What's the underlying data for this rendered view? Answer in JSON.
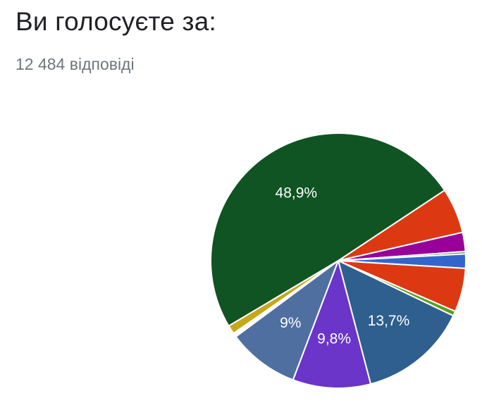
{
  "header": {
    "title": "Ви голосуєте за:",
    "response_count": "12 484 відповіді"
  },
  "chart_data": {
    "type": "pie",
    "title": "Ви голосуєте за:",
    "start_angle_deg": -33.5,
    "direction": "clockwise",
    "slices": [
      {
        "value": 5.7,
        "color": "#dc3912",
        "label": ""
      },
      {
        "value": 2.4,
        "color": "#990099",
        "label": ""
      },
      {
        "value": 0.3,
        "color": "#5a8f29",
        "label": ""
      },
      {
        "value": 1.8,
        "color": "#3366cc",
        "label": ""
      },
      {
        "value": 5.5,
        "color": "#dc3912",
        "label": ""
      },
      {
        "value": 0.6,
        "color": "#5a9e1f",
        "label": ""
      },
      {
        "value": 13.7,
        "color": "#2e5f8e",
        "label": "13,7%"
      },
      {
        "value": 9.8,
        "color": "#6a35c8",
        "label": "9,8%"
      },
      {
        "value": 9.0,
        "color": "#4e6fa0",
        "label": "9%"
      },
      {
        "value": 0.5,
        "color": "#ffffff",
        "label": ""
      },
      {
        "value": 1.1,
        "color": "#c4a81a",
        "label": ""
      },
      {
        "value": 48.9,
        "color": "#0f5422",
        "label": "48,9%"
      }
    ]
  }
}
